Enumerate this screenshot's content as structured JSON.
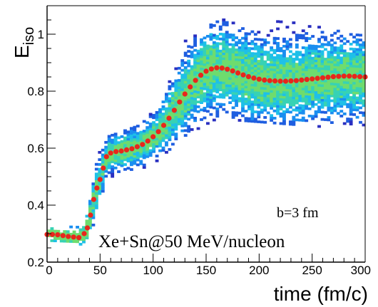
{
  "chart_data": {
    "type": "heatmap",
    "xlabel": "time (fm/c)",
    "ylabel_main": "E",
    "ylabel_sub": "iso",
    "xlim": [
      0,
      300
    ],
    "ylim": [
      0.2,
      1.1
    ],
    "x_ticks": [
      0,
      50,
      100,
      150,
      200,
      250,
      300
    ],
    "y_ticks": [
      0.2,
      0.4,
      0.6,
      0.8,
      1.0
    ],
    "x_tick_labels": [
      "0",
      "50",
      "100",
      "150",
      "200",
      "250",
      "300"
    ],
    "y_tick_labels": [
      "0.2",
      "0.4",
      "0.6",
      "0.8",
      "1"
    ],
    "annotations": [
      "b=3 fm",
      "Xe+Sn@50 MeV/nucleon"
    ],
    "mean_series": {
      "color": "#e8261c",
      "x": [
        0,
        5,
        10,
        15,
        20,
        25,
        30,
        35,
        38,
        41,
        44,
        47,
        50,
        53,
        56,
        60,
        65,
        70,
        75,
        80,
        85,
        90,
        95,
        100,
        105,
        110,
        115,
        120,
        125,
        130,
        135,
        140,
        145,
        150,
        155,
        160,
        165,
        170,
        175,
        180,
        185,
        190,
        195,
        200,
        205,
        210,
        215,
        220,
        225,
        230,
        235,
        240,
        245,
        250,
        255,
        260,
        265,
        270,
        275,
        280,
        285,
        290,
        295,
        300
      ],
      "y": [
        0.297,
        0.297,
        0.296,
        0.293,
        0.29,
        0.288,
        0.286,
        0.3,
        0.32,
        0.365,
        0.42,
        0.46,
        0.49,
        0.53,
        0.57,
        0.583,
        0.588,
        0.59,
        0.594,
        0.598,
        0.605,
        0.613,
        0.625,
        0.64,
        0.658,
        0.68,
        0.705,
        0.733,
        0.762,
        0.79,
        0.815,
        0.838,
        0.856,
        0.87,
        0.878,
        0.882,
        0.881,
        0.877,
        0.871,
        0.864,
        0.857,
        0.851,
        0.846,
        0.842,
        0.839,
        0.837,
        0.836,
        0.835,
        0.835,
        0.836,
        0.837,
        0.839,
        0.841,
        0.843,
        0.845,
        0.847,
        0.849,
        0.851,
        0.852,
        0.853,
        0.853,
        0.852,
        0.851,
        0.85
      ]
    },
    "density": {
      "colormap": [
        "#2a2fc0",
        "#1f5ee0",
        "#1a8ef0",
        "#1ec0e8",
        "#37d2b4",
        "#6edc6e"
      ],
      "spread_profile": [
        {
          "t": 0,
          "low": 0.275,
          "high": 0.325
        },
        {
          "t": 35,
          "low": 0.27,
          "high": 0.33
        },
        {
          "t": 45,
          "low": 0.36,
          "high": 0.56
        },
        {
          "t": 55,
          "low": 0.5,
          "high": 0.64
        },
        {
          "t": 100,
          "low": 0.56,
          "high": 0.72
        },
        {
          "t": 130,
          "low": 0.66,
          "high": 0.96
        },
        {
          "t": 160,
          "low": 0.72,
          "high": 1.06
        },
        {
          "t": 300,
          "low": 0.68,
          "high": 1.0
        }
      ]
    }
  }
}
